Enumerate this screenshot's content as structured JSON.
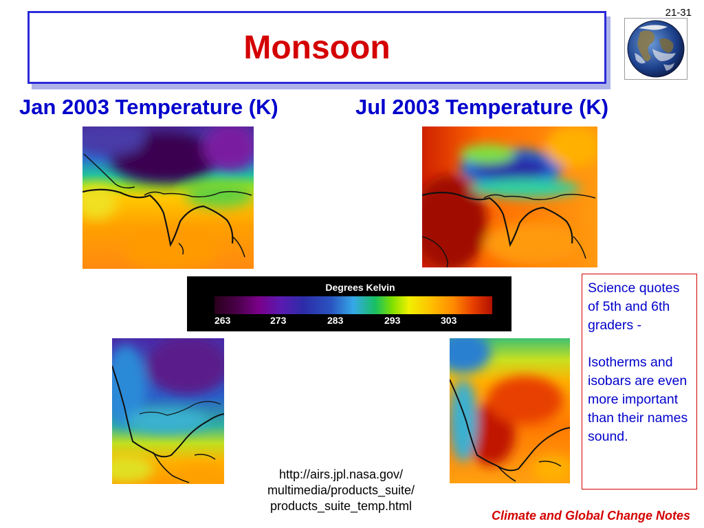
{
  "slide": {
    "number": "21-31",
    "title": "Monsoon",
    "footer": "Climate and Global Change Notes"
  },
  "panels": {
    "jan_heading": "Jan 2003 Temperature (K)",
    "jul_heading": "Jul 2003 Temperature (K)"
  },
  "colorbar": {
    "title": "Degrees Kelvin",
    "ticks": [
      "263",
      "273",
      "283",
      "293",
      "303"
    ]
  },
  "quote": {
    "paragraph1": "Science quotes of 5th and 6th graders -",
    "paragraph2": "Isotherms and isobars are even more important than their names sound."
  },
  "source": {
    "line1": "http://airs.jpl.nasa.gov/",
    "line2": "multimedia/products_suite/",
    "line3": "products_suite_temp.html"
  }
}
